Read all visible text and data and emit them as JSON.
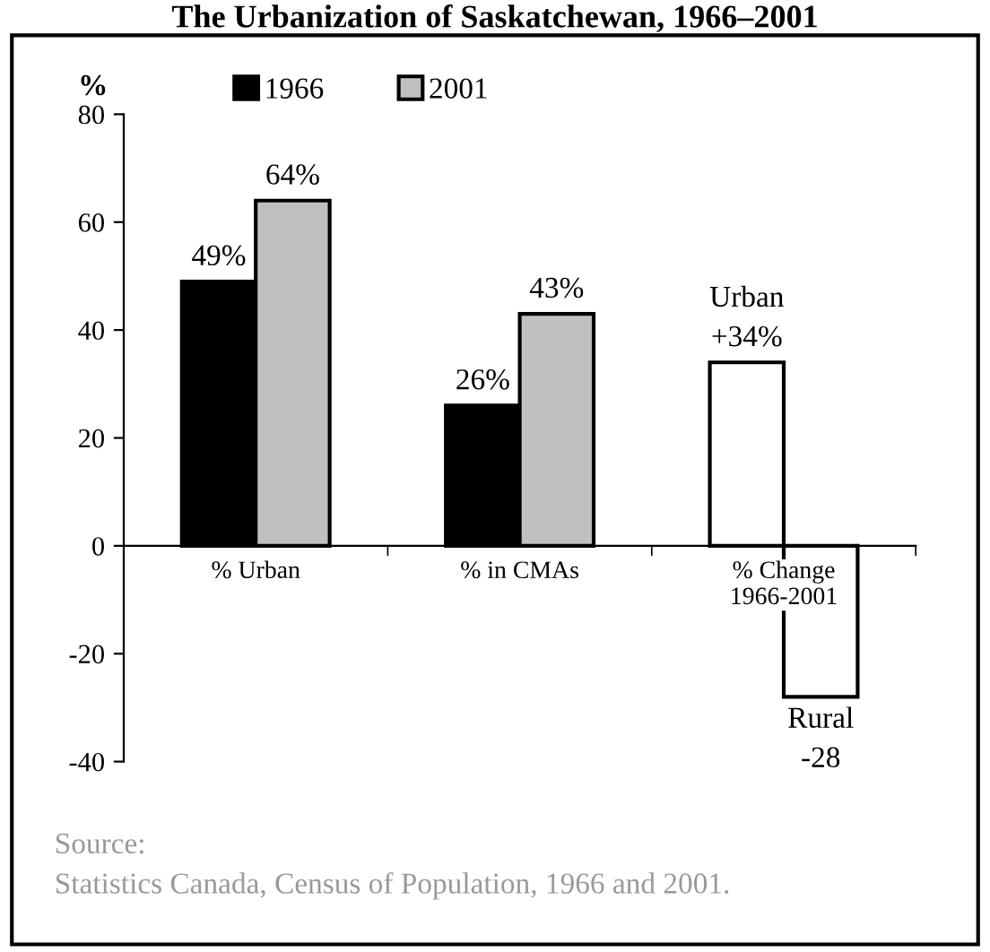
{
  "chart_data": {
    "type": "bar",
    "title": "The Urbanization of Saskatchewan, 1966–2001",
    "ylabel": "%",
    "categories": [
      "% Urban",
      "% in CMAs",
      "% Change\n1966-2001"
    ],
    "series": [
      {
        "name": "1966",
        "color": "#000000",
        "colors": [
          "#000000",
          "#000000",
          "#ffffff"
        ],
        "values": [
          49,
          26,
          34
        ],
        "value_labels": [
          "49%",
          "26%",
          "Urban\n+34%"
        ]
      },
      {
        "name": "2001",
        "color": "#c0c0c0",
        "colors": [
          "#c0c0c0",
          "#c0c0c0",
          "#ffffff"
        ],
        "values": [
          64,
          43,
          -28
        ],
        "value_labels": [
          "64%",
          "43%",
          "Rural\n-28"
        ]
      }
    ],
    "ylim": [
      -40,
      80
    ],
    "yticks": [
      -40,
      -20,
      0,
      20,
      40,
      60,
      80
    ],
    "grid": false,
    "legend": "top",
    "annotations": [
      "Source:\nStatistics Canada, Census of Population, 1966 and 2001."
    ]
  }
}
